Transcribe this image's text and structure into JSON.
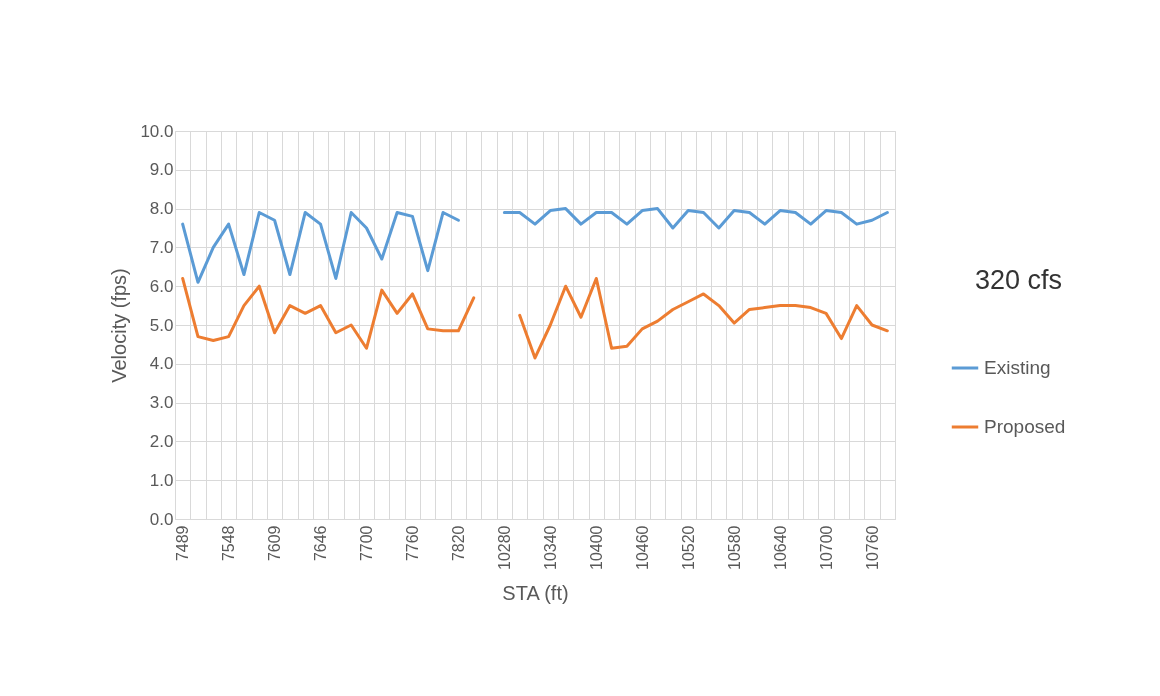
{
  "chart_data": {
    "type": "line",
    "xlabel": "STA (ft)",
    "ylabel": "Velocity (fps)",
    "categories": [
      "7489",
      null,
      null,
      "7548",
      null,
      null,
      "7609",
      null,
      null,
      "7646",
      null,
      null,
      "7700",
      null,
      null,
      "7760",
      null,
      null,
      "7820",
      null,
      null,
      "10280",
      null,
      null,
      "10340",
      null,
      null,
      "10400",
      null,
      null,
      "10460",
      null,
      null,
      "10520",
      null,
      null,
      "10580",
      null,
      null,
      "10640",
      null,
      null,
      "10700",
      null,
      null,
      "10760",
      null
    ],
    "series": [
      {
        "name": "Existing",
        "color": "#5b9bd5",
        "values": [
          7.6,
          6.1,
          7.0,
          7.6,
          6.3,
          7.9,
          7.7,
          6.3,
          7.9,
          7.6,
          6.2,
          7.9,
          7.5,
          6.7,
          7.9,
          7.8,
          6.4,
          7.9,
          7.7,
          null,
          null,
          7.9,
          7.9,
          7.6,
          7.95,
          8.0,
          7.6,
          7.9,
          7.9,
          7.6,
          7.95,
          8.0,
          7.5,
          7.95,
          7.9,
          7.5,
          7.95,
          7.9,
          7.6,
          7.95,
          7.9,
          7.6,
          7.95,
          7.9,
          7.6,
          7.7,
          7.9
        ]
      },
      {
        "name": "Proposed",
        "color": "#ed7d31",
        "values": [
          6.2,
          4.7,
          4.6,
          4.7,
          5.5,
          6.0,
          4.8,
          5.5,
          5.3,
          5.5,
          4.8,
          5.0,
          4.4,
          5.9,
          5.3,
          5.8,
          4.9,
          4.85,
          4.85,
          5.7,
          null,
          null,
          5.25,
          4.15,
          5.0,
          6.0,
          5.2,
          6.2,
          4.4,
          4.45,
          4.9,
          5.1,
          5.4,
          5.6,
          5.8,
          5.5,
          5.05,
          5.4,
          5.45,
          5.5,
          5.5,
          5.45,
          5.3,
          4.65,
          5.5,
          5.0,
          4.85
        ]
      }
    ],
    "ylim": [
      0,
      10
    ],
    "yticks": [
      {
        "value": 0,
        "label": "0.0"
      },
      {
        "value": 1,
        "label": "1.0"
      },
      {
        "value": 2,
        "label": "2.0"
      },
      {
        "value": 3,
        "label": "3.0"
      },
      {
        "value": 4,
        "label": "4.0"
      },
      {
        "value": 5,
        "label": "5.0"
      },
      {
        "value": 6,
        "label": "6.0"
      },
      {
        "value": 7,
        "label": "7.0"
      },
      {
        "value": 8,
        "label": "8.0"
      },
      {
        "value": 9,
        "label": "9.0"
      },
      {
        "value": 10,
        "label": "10.0"
      }
    ],
    "grid": true,
    "legend": "right",
    "marker": "none",
    "line_style": "solid",
    "annotations": [
      "320 cfs"
    ]
  }
}
